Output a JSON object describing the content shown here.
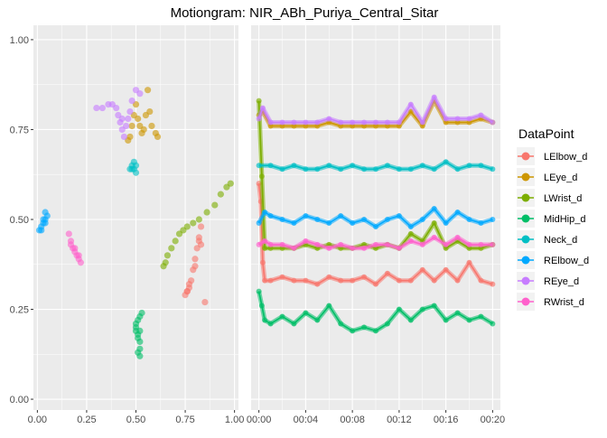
{
  "chart_data": {
    "type": "scatter",
    "title": "Motiongram: NIR_ABh_Puriya_Central_Sitar",
    "legend": {
      "title": "DataPoint",
      "placement": "right",
      "entries": [
        "LElbow_d",
        "LEye_d",
        "LWrist_d",
        "MidHip_d",
        "Neck_d",
        "RElbow_d",
        "REye_d",
        "RWrist_d"
      ]
    },
    "colors": {
      "LElbow_d": "#F8766D",
      "LEye_d": "#CD9600",
      "LWrist_d": "#7CAE00",
      "MidHip_d": "#00BE67",
      "Neck_d": "#00BFC4",
      "RElbow_d": "#00A9FF",
      "REye_d": "#C77CFF",
      "RWrist_d": "#FF61CC"
    },
    "panel_background": "#EBEBEB",
    "grid": true,
    "panels": [
      {
        "name": "left",
        "type": "scatter",
        "xlim": [
          -0.02,
          1.02
        ],
        "ylim": [
          -0.03,
          1.04
        ],
        "x_ticks": [
          0,
          0.25,
          0.5,
          0.75,
          1
        ],
        "x_tick_labels": [
          "0.00",
          "0.25",
          "0.50",
          "0.75",
          "1.00"
        ],
        "y_ticks": [
          0,
          0.25,
          0.5,
          0.75,
          1
        ],
        "y_tick_labels": [
          "0.00",
          "0.25",
          "0.50",
          "0.75",
          "1.00"
        ],
        "series": [
          {
            "name": "LElbow_d",
            "points": [
              [
                0.75,
                0.29
              ],
              [
                0.76,
                0.3
              ],
              [
                0.77,
                0.31
              ],
              [
                0.78,
                0.33
              ],
              [
                0.79,
                0.36
              ],
              [
                0.8,
                0.39
              ],
              [
                0.81,
                0.42
              ],
              [
                0.82,
                0.45
              ],
              [
                0.83,
                0.48
              ],
              [
                0.82,
                0.44
              ],
              [
                0.8,
                0.37
              ],
              [
                0.77,
                0.32
              ],
              [
                0.76,
                0.3
              ],
              [
                0.85,
                0.27
              ],
              [
                0.83,
                0.43
              ]
            ]
          },
          {
            "name": "LEye_d",
            "points": [
              [
                0.46,
                0.72
              ],
              [
                0.47,
                0.73
              ],
              [
                0.48,
                0.76
              ],
              [
                0.49,
                0.79
              ],
              [
                0.5,
                0.82
              ],
              [
                0.51,
                0.78
              ],
              [
                0.52,
                0.76
              ],
              [
                0.53,
                0.74
              ],
              [
                0.54,
                0.75
              ],
              [
                0.55,
                0.79
              ],
              [
                0.56,
                0.86
              ],
              [
                0.57,
                0.8
              ],
              [
                0.58,
                0.76
              ],
              [
                0.6,
                0.74
              ],
              [
                0.61,
                0.73
              ]
            ]
          },
          {
            "name": "LWrist_d",
            "points": [
              [
                0.65,
                0.38
              ],
              [
                0.66,
                0.4
              ],
              [
                0.68,
                0.42
              ],
              [
                0.7,
                0.44
              ],
              [
                0.72,
                0.46
              ],
              [
                0.74,
                0.47
              ],
              [
                0.76,
                0.48
              ],
              [
                0.79,
                0.49
              ],
              [
                0.82,
                0.5
              ],
              [
                0.86,
                0.52
              ],
              [
                0.9,
                0.54
              ],
              [
                0.93,
                0.57
              ],
              [
                0.96,
                0.59
              ],
              [
                0.98,
                0.6
              ],
              [
                0.64,
                0.37
              ]
            ]
          },
          {
            "name": "MidHip_d",
            "points": [
              [
                0.51,
                0.13
              ],
              [
                0.52,
                0.14
              ],
              [
                0.52,
                0.16
              ],
              [
                0.51,
                0.18
              ],
              [
                0.5,
                0.2
              ],
              [
                0.5,
                0.21
              ],
              [
                0.51,
                0.22
              ],
              [
                0.52,
                0.23
              ],
              [
                0.53,
                0.24
              ],
              [
                0.52,
                0.19
              ],
              [
                0.51,
                0.17
              ],
              [
                0.5,
                0.19
              ],
              [
                0.52,
                0.12
              ]
            ]
          },
          {
            "name": "Neck_d",
            "points": [
              [
                0.47,
                0.64
              ],
              [
                0.48,
                0.65
              ],
              [
                0.49,
                0.64
              ],
              [
                0.5,
                0.63
              ],
              [
                0.5,
                0.65
              ],
              [
                0.49,
                0.66
              ],
              [
                0.48,
                0.64
              ]
            ]
          },
          {
            "name": "RElbow_d",
            "points": [
              [
                0.01,
                0.47
              ],
              [
                0.02,
                0.48
              ],
              [
                0.03,
                0.49
              ],
              [
                0.04,
                0.5
              ],
              [
                0.05,
                0.51
              ],
              [
                0.04,
                0.52
              ],
              [
                0.03,
                0.5
              ],
              [
                0.02,
                0.47
              ],
              [
                0.04,
                0.49
              ]
            ]
          },
          {
            "name": "REye_d",
            "points": [
              [
                0.3,
                0.81
              ],
              [
                0.33,
                0.81
              ],
              [
                0.36,
                0.82
              ],
              [
                0.38,
                0.82
              ],
              [
                0.4,
                0.81
              ],
              [
                0.41,
                0.79
              ],
              [
                0.42,
                0.77
              ],
              [
                0.43,
                0.75
              ],
              [
                0.44,
                0.73
              ],
              [
                0.45,
                0.76
              ],
              [
                0.47,
                0.8
              ],
              [
                0.48,
                0.83
              ],
              [
                0.5,
                0.86
              ],
              [
                0.52,
                0.85
              ],
              [
                0.46,
                0.78
              ],
              [
                0.43,
                0.78
              ]
            ]
          },
          {
            "name": "RWrist_d",
            "points": [
              [
                0.16,
                0.46
              ],
              [
                0.17,
                0.44
              ],
              [
                0.18,
                0.42
              ],
              [
                0.19,
                0.41
              ],
              [
                0.2,
                0.4
              ],
              [
                0.21,
                0.39
              ],
              [
                0.22,
                0.38
              ],
              [
                0.19,
                0.42
              ],
              [
                0.17,
                0.43
              ],
              [
                0.21,
                0.4
              ]
            ]
          }
        ]
      },
      {
        "name": "right",
        "type": "line",
        "xlim": [
          -40,
          1240
        ],
        "ylim": [
          -0.03,
          1.04
        ],
        "x_ticks": [
          0,
          240,
          480,
          720,
          960,
          1200
        ],
        "x_tick_labels": [
          "00:00",
          "00:04",
          "00:08",
          "00:12",
          "00:16",
          "00:20"
        ],
        "series": [
          {
            "name": "LElbow_d",
            "x": [
              0,
              10,
              20,
              30,
              60,
              120,
              180,
              240,
              300,
              360,
              420,
              480,
              540,
              600,
              660,
              720,
              780,
              840,
              900,
              960,
              1020,
              1080,
              1140,
              1200
            ],
            "y": [
              0.6,
              0.55,
              0.38,
              0.33,
              0.33,
              0.34,
              0.33,
              0.33,
              0.32,
              0.34,
              0.33,
              0.33,
              0.34,
              0.32,
              0.35,
              0.33,
              0.33,
              0.36,
              0.33,
              0.36,
              0.33,
              0.38,
              0.33,
              0.32
            ]
          },
          {
            "name": "LEye_d",
            "x": [
              0,
              20,
              60,
              120,
              180,
              240,
              300,
              360,
              420,
              480,
              540,
              600,
              660,
              720,
              780,
              840,
              900,
              960,
              1020,
              1080,
              1140,
              1200
            ],
            "y": [
              0.79,
              0.8,
              0.76,
              0.76,
              0.76,
              0.76,
              0.76,
              0.77,
              0.76,
              0.76,
              0.76,
              0.76,
              0.76,
              0.76,
              0.8,
              0.76,
              0.83,
              0.77,
              0.77,
              0.77,
              0.78,
              0.77
            ]
          },
          {
            "name": "LWrist_d",
            "x": [
              0,
              15,
              30,
              60,
              120,
              180,
              240,
              300,
              360,
              420,
              480,
              540,
              600,
              660,
              720,
              780,
              840,
              900,
              960,
              1020,
              1080,
              1140,
              1200
            ],
            "y": [
              0.83,
              0.62,
              0.42,
              0.42,
              0.42,
              0.42,
              0.43,
              0.42,
              0.43,
              0.42,
              0.42,
              0.43,
              0.42,
              0.43,
              0.42,
              0.46,
              0.44,
              0.49,
              0.42,
              0.44,
              0.42,
              0.42,
              0.43
            ]
          },
          {
            "name": "MidHip_d",
            "x": [
              0,
              15,
              30,
              60,
              120,
              180,
              240,
              300,
              360,
              420,
              480,
              540,
              600,
              660,
              720,
              780,
              840,
              900,
              960,
              1020,
              1080,
              1140,
              1200
            ],
            "y": [
              0.3,
              0.26,
              0.22,
              0.21,
              0.23,
              0.21,
              0.24,
              0.22,
              0.26,
              0.21,
              0.19,
              0.2,
              0.19,
              0.21,
              0.25,
              0.22,
              0.25,
              0.26,
              0.22,
              0.24,
              0.22,
              0.23,
              0.21
            ]
          },
          {
            "name": "Neck_d",
            "x": [
              0,
              60,
              120,
              180,
              240,
              300,
              360,
              420,
              480,
              540,
              600,
              660,
              720,
              780,
              840,
              900,
              960,
              1020,
              1080,
              1140,
              1200
            ],
            "y": [
              0.65,
              0.65,
              0.64,
              0.65,
              0.64,
              0.64,
              0.65,
              0.64,
              0.65,
              0.64,
              0.64,
              0.65,
              0.64,
              0.64,
              0.65,
              0.64,
              0.66,
              0.64,
              0.65,
              0.65,
              0.64
            ]
          },
          {
            "name": "RElbow_d",
            "x": [
              0,
              30,
              60,
              120,
              180,
              240,
              300,
              360,
              420,
              480,
              540,
              600,
              660,
              720,
              780,
              840,
              900,
              960,
              1020,
              1080,
              1140,
              1200
            ],
            "y": [
              0.49,
              0.52,
              0.51,
              0.5,
              0.49,
              0.51,
              0.5,
              0.49,
              0.51,
              0.49,
              0.5,
              0.48,
              0.5,
              0.51,
              0.48,
              0.5,
              0.53,
              0.49,
              0.52,
              0.5,
              0.49,
              0.5
            ]
          },
          {
            "name": "REye_d",
            "x": [
              0,
              20,
              60,
              120,
              180,
              240,
              300,
              360,
              420,
              480,
              540,
              600,
              660,
              720,
              780,
              840,
              900,
              960,
              1020,
              1080,
              1140,
              1200
            ],
            "y": [
              0.78,
              0.81,
              0.77,
              0.77,
              0.77,
              0.77,
              0.77,
              0.78,
              0.77,
              0.77,
              0.77,
              0.77,
              0.77,
              0.77,
              0.82,
              0.77,
              0.84,
              0.78,
              0.78,
              0.78,
              0.79,
              0.77
            ]
          },
          {
            "name": "RWrist_d",
            "x": [
              0,
              30,
              60,
              120,
              180,
              240,
              300,
              360,
              420,
              480,
              540,
              600,
              660,
              720,
              780,
              840,
              900,
              960,
              1020,
              1080,
              1140,
              1200
            ],
            "y": [
              0.43,
              0.44,
              0.43,
              0.43,
              0.42,
              0.44,
              0.43,
              0.42,
              0.43,
              0.42,
              0.42,
              0.43,
              0.43,
              0.42,
              0.44,
              0.43,
              0.45,
              0.43,
              0.45,
              0.43,
              0.43,
              0.43
            ]
          }
        ]
      }
    ]
  }
}
